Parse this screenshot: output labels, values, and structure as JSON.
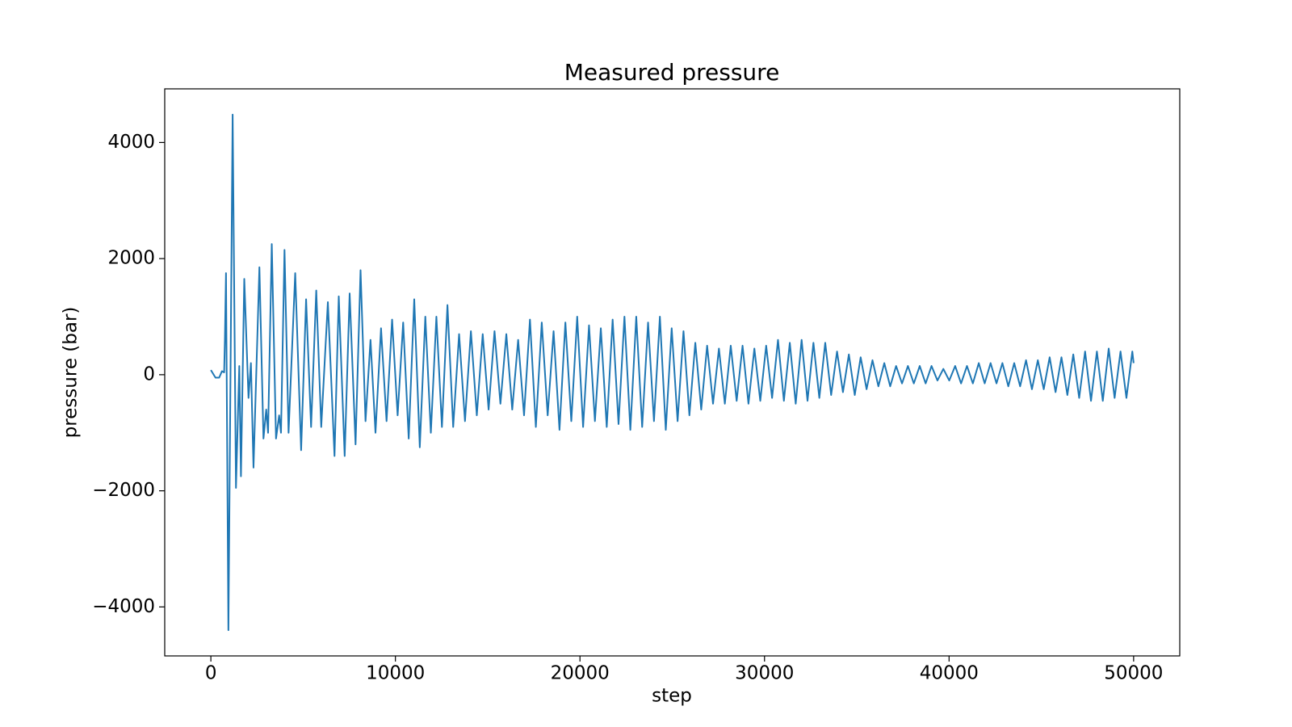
{
  "chart_data": {
    "type": "line",
    "title": "Measured pressure",
    "x_label": "step",
    "y_label": "pressure (bar)",
    "xlim": [
      -2500,
      52500
    ],
    "ylim": [
      -4844,
      4924
    ],
    "xticks": [
      0,
      10000,
      20000,
      30000,
      40000,
      50000
    ],
    "yticks": [
      {
        "value": -4000,
        "label": "−4000"
      },
      {
        "value": -2000,
        "label": "−2000"
      },
      0,
      2000,
      4000
    ],
    "grid": false,
    "x": [
      0,
      250,
      450,
      600,
      720,
      760,
      820,
      950,
      1180,
      1360,
      1540,
      1630,
      1810,
      2040,
      2170,
      2310,
      2630,
      2850,
      3000,
      3100,
      3300,
      3530,
      3700,
      3800,
      3990,
      4210,
      4570,
      4890,
      5160,
      5430,
      5710,
      5980,
      6340,
      6700,
      6930,
      7250,
      7520,
      7840,
      8110,
      8380,
      8650,
      8920,
      9220,
      9520,
      9820,
      10120,
      10420,
      10720,
      11020,
      11320,
      11620,
      11920,
      12220,
      12520,
      12820,
      13130,
      13450,
      13770,
      14090,
      14410,
      14730,
      15050,
      15370,
      15690,
      16010,
      16330,
      16650,
      16970,
      17290,
      17610,
      17930,
      18250,
      18570,
      18890,
      19210,
      19530,
      19850,
      20170,
      20490,
      20810,
      21130,
      21450,
      21770,
      22090,
      22410,
      22730,
      23050,
      23370,
      23690,
      24010,
      24330,
      24650,
      24970,
      25290,
      25610,
      25930,
      26250,
      26570,
      26890,
      27210,
      27530,
      27850,
      28170,
      28490,
      28810,
      29130,
      29450,
      29770,
      30090,
      30410,
      30730,
      31050,
      31370,
      31690,
      32010,
      32330,
      32650,
      32970,
      33290,
      33610,
      33930,
      34250,
      34570,
      34890,
      35210,
      35530,
      35850,
      36170,
      36490,
      36810,
      37130,
      37450,
      37770,
      38090,
      38410,
      38730,
      39050,
      39370,
      39690,
      40010,
      40330,
      40650,
      40970,
      41290,
      41610,
      41930,
      42250,
      42570,
      42890,
      43210,
      43530,
      43850,
      44170,
      44490,
      44810,
      45130,
      45450,
      45770,
      46090,
      46410,
      46730,
      47050,
      47370,
      47690,
      48010,
      48330,
      48650,
      48970,
      49290,
      49610,
      49930,
      50000
    ],
    "series": [
      {
        "color": "#1f77b4",
        "values": [
          80,
          -50,
          -50,
          60,
          40,
          600,
          1750,
          -4400,
          4480,
          -1950,
          150,
          -1750,
          1650,
          -400,
          200,
          -1600,
          1850,
          -1100,
          -600,
          -1000,
          2250,
          -1100,
          -700,
          -1000,
          2150,
          -1000,
          1750,
          -1300,
          1300,
          -900,
          1450,
          -900,
          1250,
          -1400,
          1350,
          -1400,
          1400,
          -1200,
          1800,
          -800,
          600,
          -1000,
          800,
          -800,
          950,
          -700,
          900,
          -1100,
          1300,
          -1250,
          1000,
          -1000,
          1000,
          -900,
          1200,
          -900,
          700,
          -800,
          750,
          -700,
          700,
          -600,
          750,
          -500,
          700,
          -600,
          600,
          -700,
          950,
          -900,
          900,
          -700,
          750,
          -950,
          900,
          -800,
          1000,
          -900,
          850,
          -800,
          800,
          -900,
          950,
          -850,
          1000,
          -950,
          1000,
          -900,
          900,
          -800,
          1000,
          -950,
          800,
          -800,
          750,
          -700,
          550,
          -600,
          500,
          -500,
          450,
          -500,
          500,
          -450,
          500,
          -500,
          450,
          -450,
          500,
          -400,
          600,
          -450,
          550,
          -500,
          600,
          -450,
          550,
          -400,
          550,
          -350,
          400,
          -300,
          350,
          -350,
          300,
          -250,
          250,
          -200,
          200,
          -200,
          150,
          -150,
          150,
          -150,
          150,
          -150,
          150,
          -100,
          100,
          -100,
          150,
          -150,
          150,
          -150,
          200,
          -150,
          200,
          -150,
          200,
          -200,
          200,
          -200,
          250,
          -250,
          250,
          -250,
          300,
          -300,
          300,
          -350,
          350,
          -400,
          400,
          -450,
          400,
          -450,
          450,
          -400,
          400,
          -400,
          400,
          200
        ]
      }
    ]
  }
}
